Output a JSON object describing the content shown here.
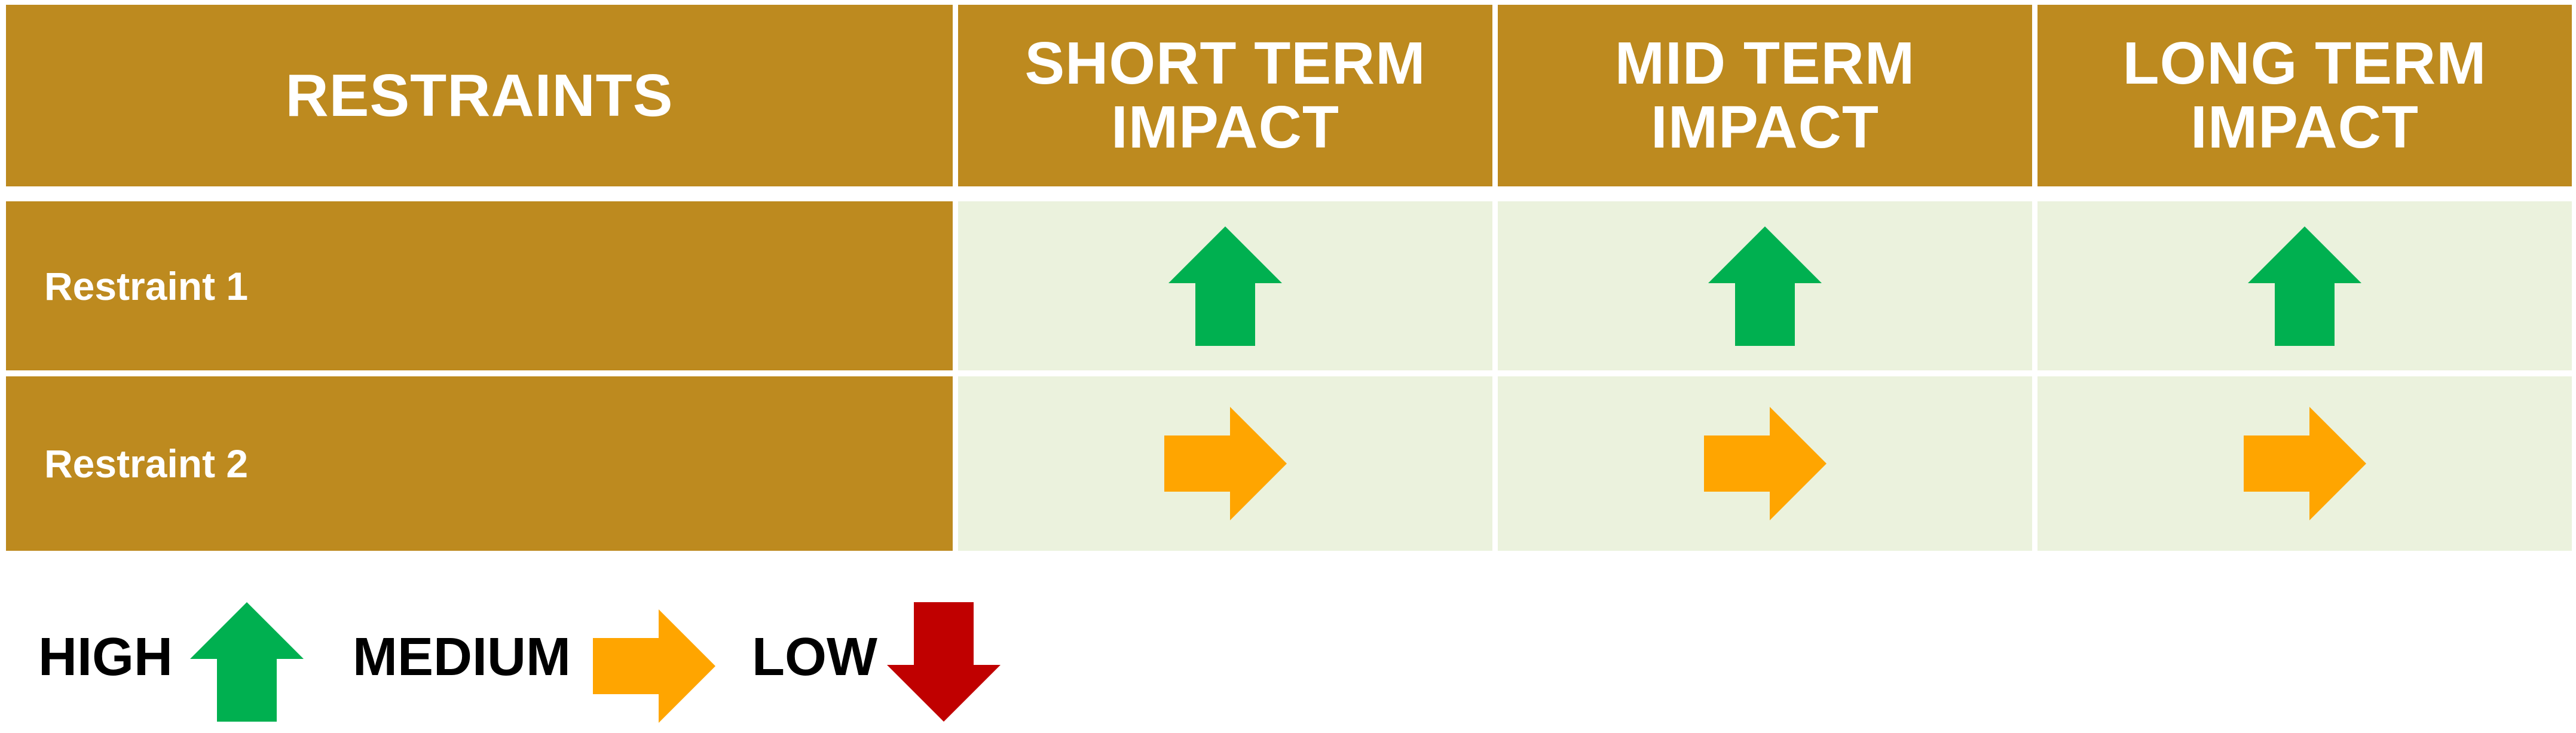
{
  "table": {
    "header": {
      "restraints": "RESTRAINTS",
      "short_term": "SHORT TERM\nIMPACT",
      "mid_term": "MID TERM\nIMPACT",
      "long_term": "LONG TERM\nIMPACT"
    },
    "rows": [
      {
        "label": "Restraint 1",
        "short": "high",
        "mid": "high",
        "long": "high"
      },
      {
        "label": "Restraint 2",
        "short": "medium",
        "mid": "medium",
        "long": "medium"
      }
    ]
  },
  "legend": {
    "high": "HIGH",
    "medium": "MEDIUM",
    "low": "LOW"
  },
  "icons": {
    "high": "arrow-up-icon",
    "medium": "arrow-right-icon",
    "low": "arrow-down-icon"
  },
  "colors": {
    "header_bg": "#bd8a1f",
    "cell_bg": "#ebf2dd",
    "high": "#00b050",
    "medium": "#ffa500",
    "low": "#c00000"
  }
}
